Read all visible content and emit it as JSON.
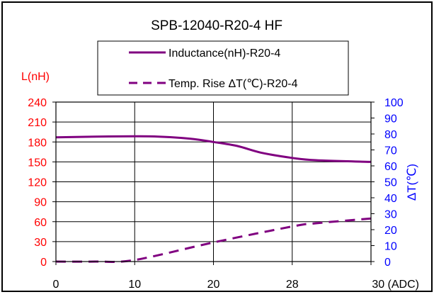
{
  "chart_data": {
    "type": "line",
    "title": "SPB-12040-R20-4 HF",
    "y_left": {
      "label": "L(nH)",
      "ticks": [
        0,
        30,
        60,
        90,
        120,
        150,
        180,
        210,
        240
      ],
      "range": [
        0,
        240
      ],
      "color": "#ff0000"
    },
    "y_right": {
      "label": "ΔT(℃)",
      "ticks": [
        0,
        10,
        20,
        30,
        40,
        50,
        60,
        70,
        80,
        90,
        100
      ],
      "range": [
        0,
        100
      ],
      "color": "#0000ff"
    },
    "x": {
      "tick_labels": [
        "0",
        "10",
        "20",
        "28",
        "30 (ADC)"
      ]
    },
    "grid": true,
    "legend_position": "top",
    "series": [
      {
        "name": "Inductance(nH)-R20-4",
        "axis": "left",
        "color": "#800080",
        "style": "solid",
        "points": [
          [
            0,
            187
          ],
          [
            0.5,
            188
          ],
          [
            1,
            188.5
          ],
          [
            1.3,
            188
          ],
          [
            1.7,
            185
          ],
          [
            2,
            180
          ],
          [
            2.3,
            174
          ],
          [
            2.6,
            164
          ],
          [
            3,
            156
          ],
          [
            3.3,
            152.5
          ],
          [
            4,
            150
          ]
        ]
      },
      {
        "name": "Temp. Rise ΔT(℃)-R20-4",
        "axis": "right",
        "color": "#800080",
        "style": "dashed",
        "points": [
          [
            0,
            0
          ],
          [
            0.5,
            0
          ],
          [
            1,
            1
          ],
          [
            2,
            12
          ],
          [
            3,
            22
          ],
          [
            3.3,
            24
          ],
          [
            4,
            27
          ]
        ]
      }
    ]
  }
}
